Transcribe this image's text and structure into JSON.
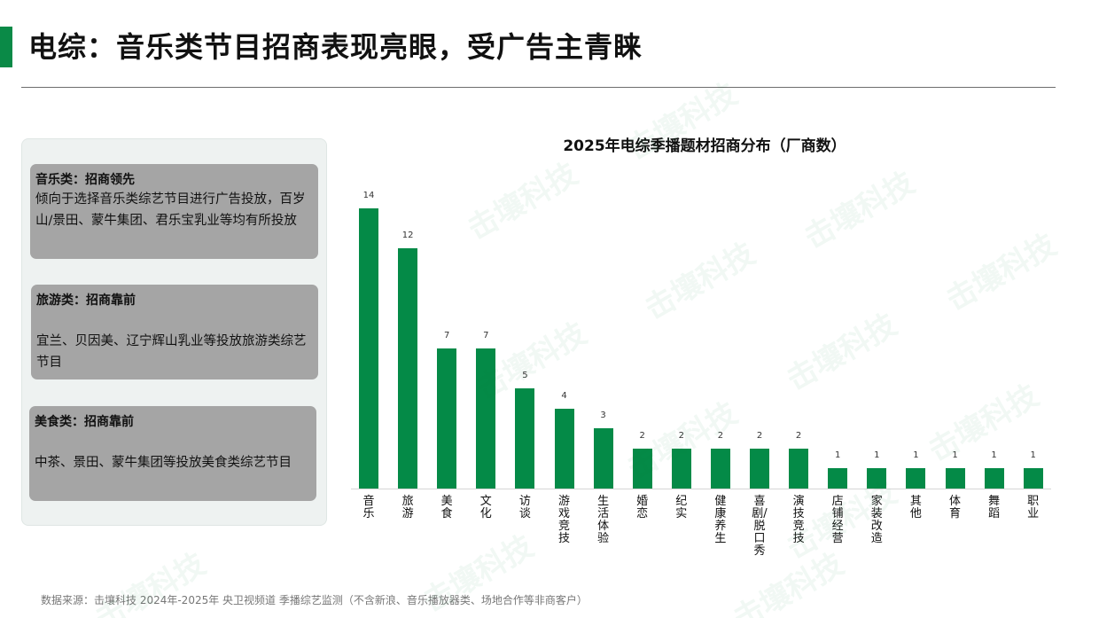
{
  "page": {
    "title": "电综：音乐类节目招商表现亮眼，受广告主青睐",
    "accent_color": "#0a8a47"
  },
  "side_panel": {
    "cards": [
      {
        "title": "音乐类：招商领先",
        "body": "倾向于选择音乐类综艺节目进行广告投放，百岁山/景田、蒙牛集团、君乐宝乳业等均有所投放"
      },
      {
        "title": "旅游类：招商靠前",
        "body": "宜兰、贝因美、辽宁辉山乳业等投放旅游类综艺节目"
      },
      {
        "title": "美食类：招商靠前",
        "body": "中茶、景田、蒙牛集团等投放美食类综艺节目"
      }
    ]
  },
  "chart_data": {
    "type": "bar",
    "title": "2025年电综季播题材招商分布（厂商数）",
    "xlabel": "",
    "ylabel": "",
    "categories": [
      "音乐",
      "旅游",
      "美食",
      "文化",
      "访谈",
      "游戏竞技",
      "生活体验",
      "婚恋",
      "纪实",
      "健康养生",
      "喜剧/脱口秀",
      "演技竞技",
      "店铺经营",
      "家装改造",
      "其他",
      "体育",
      "舞蹈",
      "职业"
    ],
    "values": [
      14,
      12,
      7,
      7,
      5,
      4,
      3,
      2,
      2,
      2,
      2,
      2,
      1,
      1,
      1,
      1,
      1,
      1
    ],
    "ylim": [
      0,
      15
    ],
    "grid": false,
    "legend": "none",
    "bar_color": "#048a47",
    "data_labels": true
  },
  "footer": {
    "source": "数据来源：击壤科技 2024年-2025年 央卫视频道 季播综艺监测（不含新浪、音乐播放器类、场地合作等非商客户）"
  },
  "watermark": {
    "text": "击壤科技"
  }
}
